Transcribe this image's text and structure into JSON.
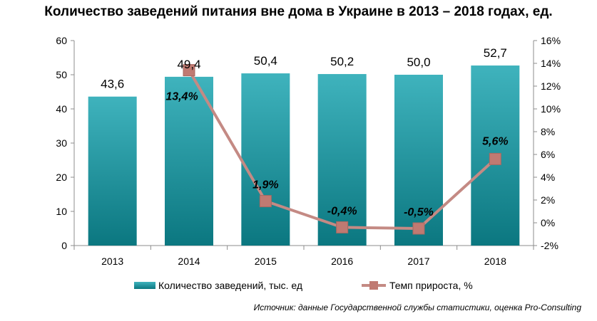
{
  "title": "Количество заведений питания вне дома в Украине в 2013 – 2018 годах, ед.",
  "source": "Источник: данные Государственной службы статистики, оценка Pro-Consulting",
  "colors": {
    "bar_top": "#3fb3bd",
    "bar_bottom": "#0b7780",
    "line": "#c48a84",
    "marker": "#c07a72",
    "axis": "#8c8c8c"
  },
  "chart_data": {
    "type": "bar",
    "title": "Количество заведений питания вне дома в Украине в 2013 – 2018 годах, ед.",
    "categories": [
      "2013",
      "2014",
      "2015",
      "2016",
      "2017",
      "2018"
    ],
    "series": [
      {
        "name": "Количество заведений, тыс. ед",
        "type": "bar",
        "axis": "left",
        "values": [
          43.6,
          49.4,
          50.4,
          50.2,
          50.0,
          52.7
        ],
        "labels": [
          "43,6",
          "49,4",
          "50,4",
          "50,2",
          "50,0",
          "52,7"
        ]
      },
      {
        "name": "Темп прироста, %",
        "type": "line",
        "axis": "right",
        "values": [
          null,
          13.4,
          1.9,
          -0.4,
          -0.5,
          5.6
        ],
        "labels": [
          "",
          "13,4%",
          "1,9%",
          "-0,4%",
          "-0,5%",
          "5,6%"
        ]
      }
    ],
    "y_left": {
      "min": 0,
      "max": 60,
      "step": 10,
      "ticks": [
        "0",
        "10",
        "20",
        "30",
        "40",
        "50",
        "60"
      ]
    },
    "y_right": {
      "min": -2,
      "max": 16,
      "step": 2,
      "ticks": [
        "-2%",
        "0%",
        "2%",
        "4%",
        "6%",
        "8%",
        "10%",
        "12%",
        "14%",
        "16%"
      ]
    },
    "grid": false,
    "legend": "bottom"
  }
}
